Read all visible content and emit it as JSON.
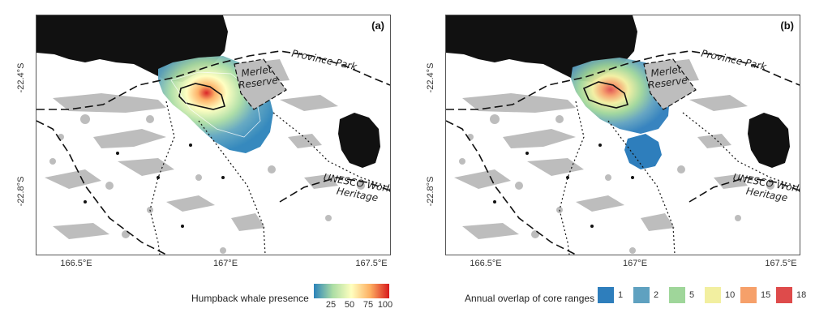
{
  "panels": [
    {
      "label": "(a)",
      "lon_ticks": [
        "166.5°E",
        "167°E",
        "167.5°E"
      ],
      "lat_ticks": [
        "-22.4°S",
        "-22.8°S"
      ]
    },
    {
      "label": "(b)",
      "lon_ticks": [
        "166.5°E",
        "167°E",
        "167.5°E"
      ],
      "lat_ticks": [
        "-22.4°S",
        "-22.8°S"
      ]
    }
  ],
  "areas": {
    "province_park": "Province Park",
    "merlet_reserve_line1": "Merlet",
    "merlet_reserve_line2": "Reserve",
    "unesco_line1": "UNESCO World",
    "unesco_line2": "Heritage"
  },
  "legend_a": {
    "title": "Humpback whale presence",
    "ticks": [
      "25",
      "50",
      "75",
      "100"
    ],
    "colors": [
      "#2b83ba",
      "#abdda4",
      "#ffffbf",
      "#fdae61",
      "#d7191c"
    ]
  },
  "legend_b": {
    "title": "Annual overlap of core ranges",
    "items": [
      {
        "label": "1",
        "color": "#2e7ebc"
      },
      {
        "label": "2",
        "color": "#5fa1c0"
      },
      {
        "label": "5",
        "color": "#9fd69a"
      },
      {
        "label": "10",
        "color": "#f2efa0"
      },
      {
        "label": "15",
        "color": "#f6a06a"
      },
      {
        "label": "18",
        "color": "#de4b4b"
      }
    ]
  },
  "map_colors": {
    "land": "#111111",
    "reef": "#bdbdbd"
  }
}
